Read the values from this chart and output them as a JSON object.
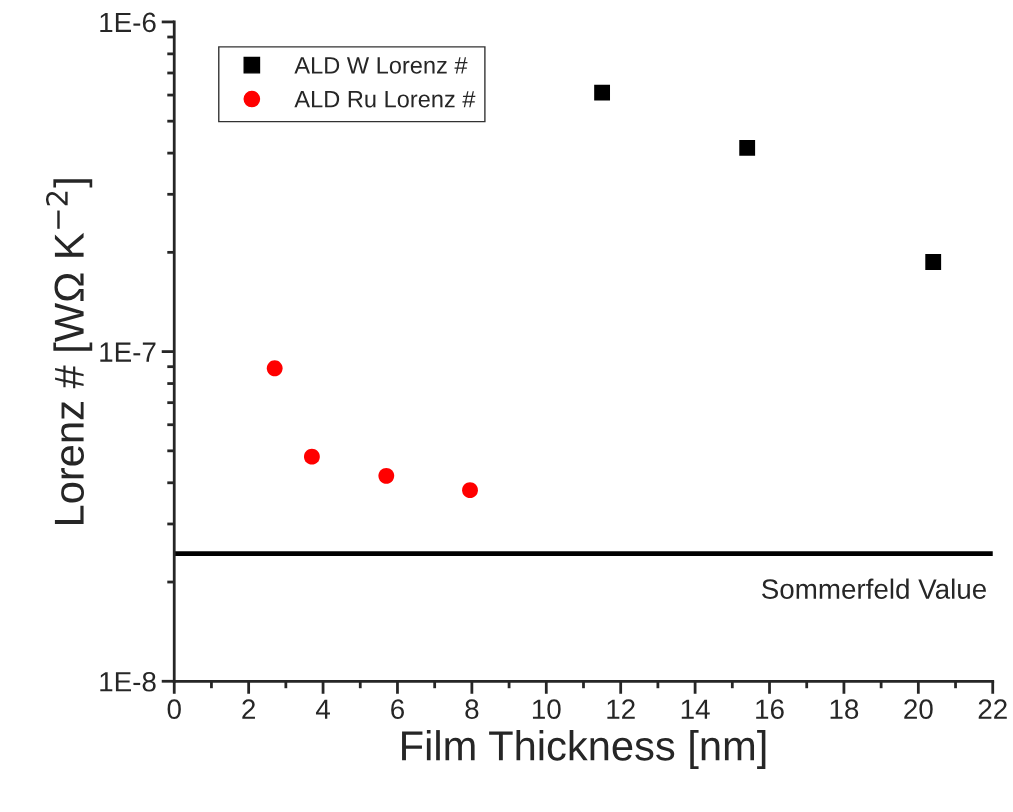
{
  "chart_data": {
    "type": "scatter",
    "xlabel": "Film Thickness [nm]",
    "ylabel": "Lorenz # [WΩ K$^{−2}$]",
    "series": [
      {
        "name": "ALD W Lorenz #",
        "color": "#000000",
        "marker": "square",
        "x": [
          11.5,
          15.4,
          20.4
        ],
        "values": [
          6.1e-07,
          4.15e-07,
          1.87e-07
        ]
      },
      {
        "name": "ALD Ru Lorenz #",
        "color": "#ff0000",
        "marker": "circle",
        "x": [
          2.7,
          3.7,
          5.7,
          7.95
        ],
        "values": [
          8.9e-08,
          4.8e-08,
          4.2e-08,
          3.8e-08
        ]
      }
    ],
    "log": "y",
    "xlim": [
      0,
      22
    ],
    "xticks": [
      0,
      2,
      4,
      6,
      8,
      10,
      12,
      14,
      16,
      18,
      20,
      22
    ],
    "ylim": [
      1e-08,
      1e-06
    ],
    "yticks": [
      {
        "value": 1e-08,
        "label": "1E-8"
      },
      {
        "value": 1e-07,
        "label": "1E-7"
      },
      {
        "value": 1e-06,
        "label": "1E-6"
      }
    ],
    "ref_lines": [
      {
        "axis": "y",
        "value": 2.44e-08,
        "label": "Sommerfeld Value",
        "color": "#000000",
        "line_style": "solid"
      }
    ],
    "legend": "top left",
    "grid": false
  }
}
